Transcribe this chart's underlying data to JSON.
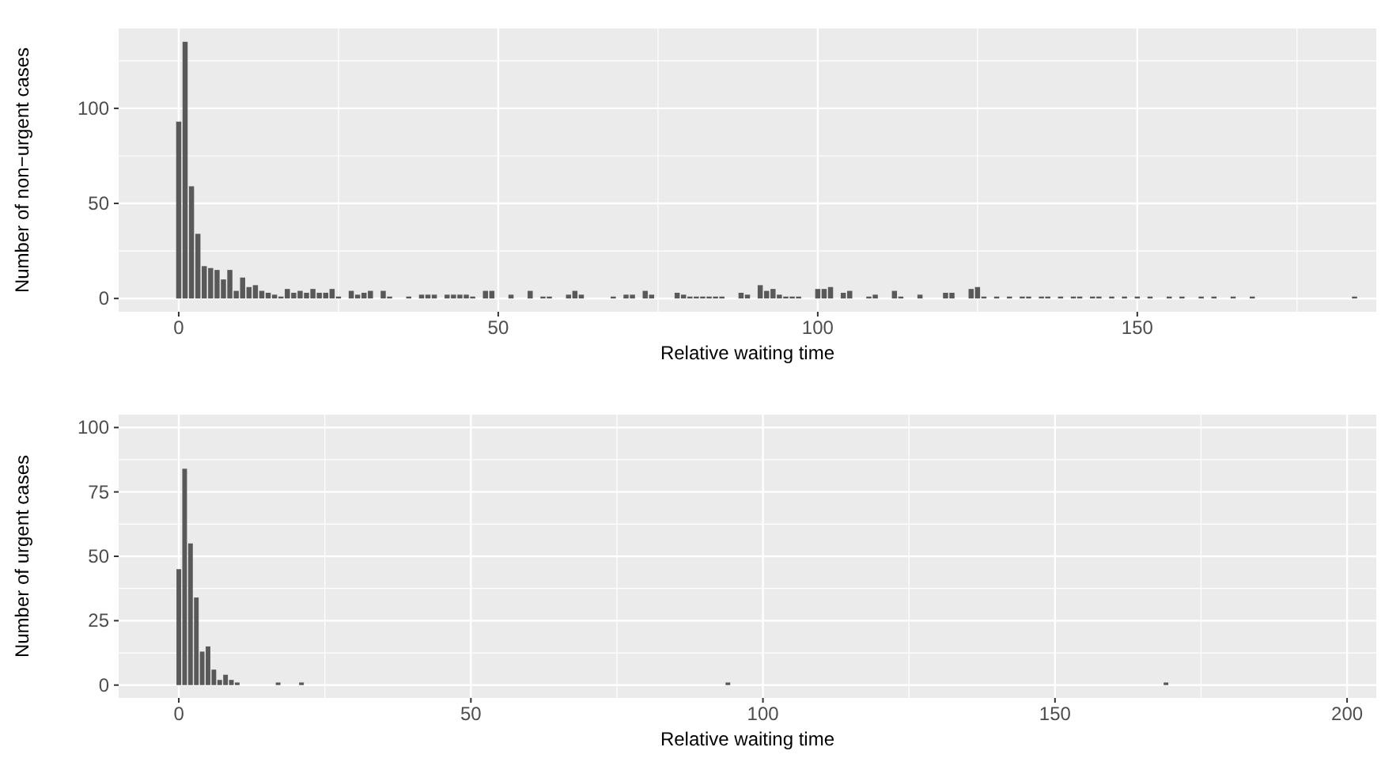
{
  "chart_data": [
    {
      "type": "bar",
      "xlabel": "Relative waiting time",
      "ylabel": "Number of non−urgent cases",
      "color": "#595959",
      "grid": true,
      "xlim": [
        -9.4,
        187.4
      ],
      "xticks": [
        0,
        50,
        100,
        150
      ],
      "ylim": [
        -7,
        142
      ],
      "yticks": [
        0,
        50,
        100
      ],
      "x": [
        0,
        1,
        2,
        3,
        4,
        5,
        6,
        7,
        8,
        9,
        10,
        11,
        12,
        13,
        14,
        15,
        16,
        17,
        18,
        19,
        20,
        21,
        22,
        23,
        24,
        25,
        27,
        28,
        29,
        30,
        32,
        33,
        36,
        38,
        39,
        40,
        42,
        43,
        44,
        45,
        46,
        48,
        49,
        52,
        55,
        57,
        58,
        61,
        62,
        63,
        68,
        70,
        71,
        73,
        74,
        78,
        79,
        80,
        81,
        82,
        83,
        84,
        85,
        88,
        89,
        91,
        92,
        93,
        94,
        95,
        96,
        97,
        100,
        101,
        102,
        104,
        105,
        108,
        109,
        112,
        113,
        116,
        120,
        121,
        124,
        125,
        126,
        128,
        130,
        132,
        133,
        135,
        136,
        138,
        140,
        141,
        143,
        144,
        146,
        148,
        150,
        152,
        155,
        157,
        160,
        162,
        165,
        168,
        184
      ],
      "values": [
        93,
        135,
        59,
        34,
        17,
        16,
        15,
        10,
        15,
        4,
        11,
        6,
        7,
        4,
        3,
        2,
        1,
        5,
        3,
        4,
        3,
        5,
        3,
        3,
        5,
        1,
        4,
        2,
        3,
        4,
        4,
        1,
        1,
        2,
        2,
        2,
        2,
        2,
        2,
        2,
        1,
        4,
        4,
        2,
        4,
        1,
        1,
        2,
        4,
        2,
        1,
        2,
        2,
        4,
        2,
        3,
        2,
        1,
        1,
        1,
        1,
        1,
        1,
        3,
        2,
        7,
        4,
        5,
        2,
        1,
        1,
        1,
        5,
        5,
        6,
        3,
        4,
        1,
        2,
        4,
        1,
        2,
        3,
        3,
        5,
        6,
        1,
        1,
        1,
        1,
        1,
        1,
        1,
        1,
        1,
        1,
        1,
        1,
        1,
        1,
        1,
        1,
        1,
        1,
        1,
        1,
        1,
        1,
        1
      ]
    },
    {
      "type": "bar",
      "xlabel": "Relative waiting time",
      "ylabel": "Number of urgent cases",
      "color": "#595959",
      "grid": true,
      "xlim": [
        -10.3,
        205
      ],
      "xticks": [
        0,
        50,
        100,
        150,
        200
      ],
      "ylim": [
        -5,
        105
      ],
      "yticks": [
        0,
        25,
        50,
        75,
        100
      ],
      "x": [
        0,
        1,
        2,
        3,
        4,
        5,
        6,
        7,
        8,
        9,
        10,
        17,
        21,
        94,
        169
      ],
      "values": [
        45,
        84,
        55,
        34,
        13,
        15,
        6,
        2,
        4,
        2,
        1,
        1,
        1,
        1,
        1
      ]
    }
  ]
}
